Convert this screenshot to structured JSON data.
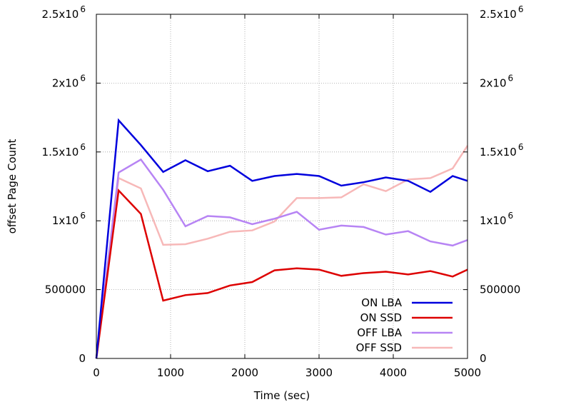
{
  "chart_data": {
    "type": "line",
    "title": "",
    "xlabel": "Time (sec)",
    "ylabel": "offset Page Count",
    "xlim": [
      0,
      5000
    ],
    "ylim": [
      0,
      2500000
    ],
    "x_ticks": [
      0,
      1000,
      2000,
      3000,
      4000,
      5000
    ],
    "x_tick_labels": [
      "0",
      "1000",
      "2000",
      "3000",
      "4000",
      "5000"
    ],
    "y_ticks": [
      0,
      500000,
      1000000,
      1500000,
      2000000,
      2500000
    ],
    "y_tick_labels": [
      {
        "base": "0",
        "exp": ""
      },
      {
        "base": "500000",
        "exp": ""
      },
      {
        "base": "1x10",
        "exp": "6"
      },
      {
        "base": "1.5x10",
        "exp": "6"
      },
      {
        "base": "2x10",
        "exp": "6"
      },
      {
        "base": "2.5x10",
        "exp": "6"
      }
    ],
    "grid": true,
    "legend_position": "bottom-right",
    "x": [
      0,
      300,
      600,
      900,
      1200,
      1500,
      1800,
      2100,
      2400,
      2700,
      3000,
      3300,
      3600,
      3900,
      4200,
      4500,
      4800,
      5000
    ],
    "series": [
      {
        "name": "ON LBA",
        "color": "#0000dd",
        "values": [
          0,
          1730000,
          1550000,
          1355000,
          1440000,
          1360000,
          1400000,
          1290000,
          1325000,
          1340000,
          1325000,
          1255000,
          1280000,
          1315000,
          1290000,
          1210000,
          1325000,
          1290000
        ]
      },
      {
        "name": "ON SSD",
        "color": "#dd0000",
        "values": [
          0,
          1220000,
          1050000,
          420000,
          460000,
          475000,
          530000,
          555000,
          640000,
          655000,
          645000,
          600000,
          620000,
          630000,
          610000,
          635000,
          595000,
          645000
        ]
      },
      {
        "name": "OFF LBA",
        "color": "#b784f4",
        "values": [
          0,
          1350000,
          1445000,
          1225000,
          960000,
          1035000,
          1025000,
          975000,
          1015000,
          1065000,
          935000,
          965000,
          955000,
          900000,
          925000,
          850000,
          820000,
          860000
        ]
      },
      {
        "name": "OFF SSD",
        "color": "#f7b8b8",
        "values": [
          0,
          1310000,
          1235000,
          825000,
          830000,
          870000,
          920000,
          930000,
          995000,
          1165000,
          1165000,
          1170000,
          1265000,
          1215000,
          1300000,
          1310000,
          1380000,
          1545000
        ]
      }
    ]
  }
}
